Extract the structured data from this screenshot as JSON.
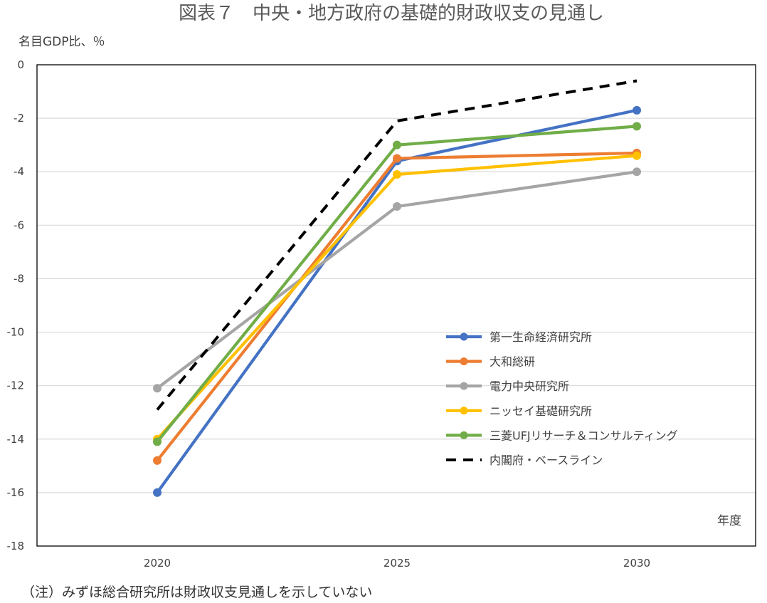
{
  "chart_data": {
    "type": "line",
    "title": "図表７　中央・地方政府の基礎的財政収支の見通し",
    "ylabel": "名目GDP比、％",
    "xlabel": "年度",
    "note": "（注）みずほ総合研究所は財政収支見通しを示していない",
    "x": [
      "2020",
      "2025",
      "2030"
    ],
    "ylim": [
      -18,
      0
    ],
    "yticks": [
      0,
      -2,
      -4,
      -6,
      -8,
      -10,
      -12,
      -14,
      -16,
      -18
    ],
    "grid": true,
    "legend_position": "lower-right",
    "series": [
      {
        "name": "第一生命経済研究所",
        "values": [
          -16.0,
          -3.6,
          -1.7
        ],
        "color": "#4472C4",
        "dashed": false,
        "markers": true
      },
      {
        "name": "大和総研",
        "values": [
          -14.8,
          -3.5,
          -3.3
        ],
        "color": "#ED7D31",
        "dashed": false,
        "markers": true
      },
      {
        "name": "電力中央研究所",
        "values": [
          -12.1,
          -5.3,
          -4.0
        ],
        "color": "#A5A5A5",
        "dashed": false,
        "markers": true
      },
      {
        "name": "ニッセイ基礎研究所",
        "values": [
          -14.0,
          -4.1,
          -3.4
        ],
        "color": "#FFC000",
        "dashed": false,
        "markers": true
      },
      {
        "name": "三菱UFJリサーチ＆コンサルティング",
        "values": [
          -14.1,
          -3.0,
          -2.3
        ],
        "color": "#70AD47",
        "dashed": false,
        "markers": true
      },
      {
        "name": "内閣府・ベースライン",
        "values": [
          -12.9,
          -2.1,
          -0.6
        ],
        "color": "#000000",
        "dashed": true,
        "markers": false
      }
    ]
  }
}
